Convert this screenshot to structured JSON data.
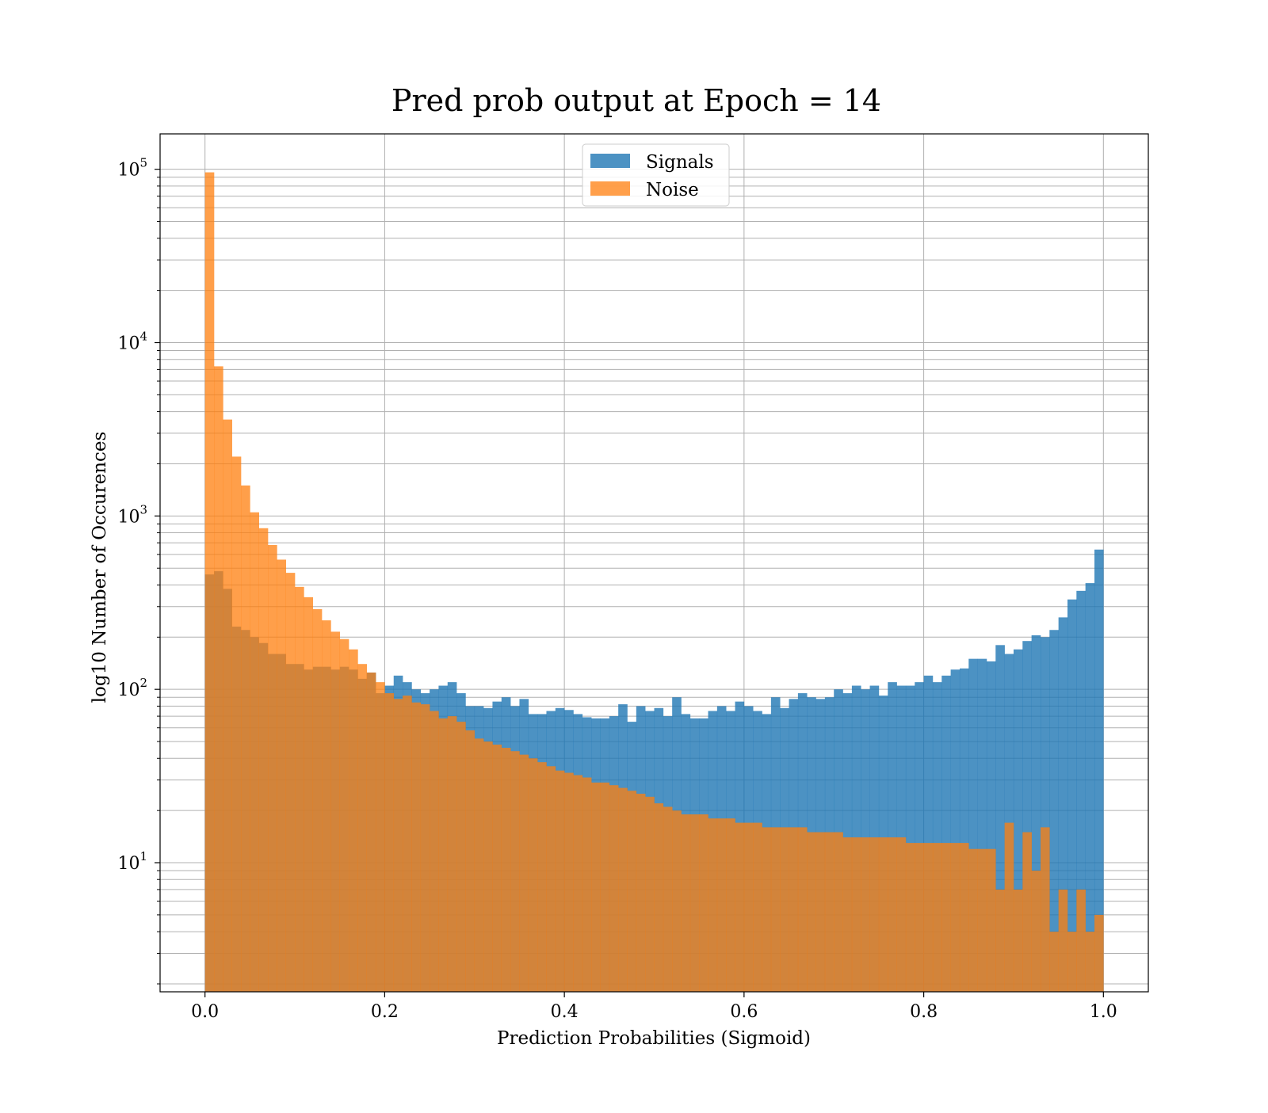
{
  "chart_data": {
    "type": "bar",
    "title": "Pred prob output at Epoch = 14",
    "xlabel": "Prediction Probabilities (Sigmoid)",
    "ylabel": "log10 Number of Occurences",
    "yscale": "log",
    "xlim": [
      -0.05,
      1.05
    ],
    "ylim": [
      1.8,
      160000
    ],
    "grid": true,
    "legend": "top-center",
    "x_ticks": [
      "0.0",
      "0.2",
      "0.4",
      "0.6",
      "0.8",
      "1.0"
    ],
    "y_ticks": [
      {
        "base": "10",
        "exp": "1"
      },
      {
        "base": "10",
        "exp": "2"
      },
      {
        "base": "10",
        "exp": "3"
      },
      {
        "base": "10",
        "exp": "4"
      },
      {
        "base": "10",
        "exp": "5"
      }
    ],
    "bins": {
      "start": 0.0,
      "end": 1.0,
      "count": 100
    },
    "series": [
      {
        "name": "Signals",
        "color": "#1f77b4",
        "opacity": 0.8,
        "values": [
          460,
          480,
          380,
          230,
          220,
          200,
          185,
          160,
          160,
          140,
          140,
          130,
          135,
          135,
          130,
          135,
          130,
          115,
          125,
          95,
          105,
          120,
          110,
          100,
          95,
          100,
          105,
          110,
          95,
          80,
          80,
          78,
          85,
          90,
          80,
          88,
          72,
          72,
          75,
          78,
          76,
          72,
          69,
          68,
          68,
          70,
          82,
          65,
          80,
          75,
          78,
          70,
          90,
          72,
          68,
          68,
          75,
          80,
          75,
          85,
          80,
          75,
          72,
          90,
          78,
          88,
          95,
          90,
          88,
          90,
          100,
          95,
          105,
          100,
          105,
          92,
          110,
          105,
          105,
          110,
          120,
          110,
          120,
          130,
          132,
          150,
          150,
          145,
          180,
          160,
          170,
          190,
          205,
          200,
          220,
          260,
          330,
          370,
          410,
          640
        ]
      },
      {
        "name": "Noise",
        "color": "#ff7f0e",
        "opacity": 0.75,
        "values": [
          96000,
          7300,
          3600,
          2200,
          1500,
          1050,
          850,
          680,
          560,
          470,
          390,
          340,
          290,
          250,
          215,
          195,
          170,
          140,
          125,
          110,
          95,
          88,
          92,
          84,
          82,
          75,
          68,
          70,
          65,
          58,
          52,
          50,
          48,
          46,
          44,
          42,
          40,
          38,
          36,
          34,
          33,
          32,
          31,
          29,
          29,
          28,
          27,
          26,
          25,
          24,
          22,
          21,
          20,
          19,
          19,
          19,
          18,
          18,
          18,
          17,
          17,
          17,
          16,
          16,
          16,
          16,
          16,
          15,
          15,
          15,
          15,
          14,
          14,
          14,
          14,
          14,
          14,
          14,
          13,
          13,
          13,
          13,
          13,
          13,
          13,
          12,
          12,
          12,
          7,
          17,
          7,
          15,
          9,
          16,
          4,
          7,
          4,
          7,
          4,
          5
        ]
      }
    ]
  }
}
